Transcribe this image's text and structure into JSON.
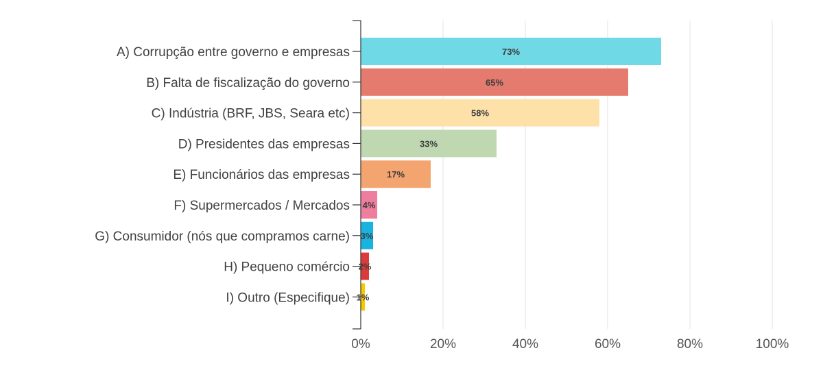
{
  "chart_data": {
    "type": "bar",
    "orientation": "horizontal",
    "title": "",
    "xlabel": "",
    "ylabel": "",
    "xlim": [
      0,
      100
    ],
    "grid": true,
    "legend": "none",
    "categories": [
      "A) Corrupção entre governo e empresas",
      "B) Falta de fiscalização do governo",
      "C) Indústria (BRF, JBS, Seara etc)",
      "D) Presidentes das empresas",
      "E) Funcionários das empresas",
      "F) Supermercados / Mercados",
      "G) Consumidor (nós que compramos carne)",
      "H) Pequeno comércio",
      "I) Outro (Especifique)"
    ],
    "values": [
      73,
      65,
      58,
      33,
      17,
      4,
      3,
      2,
      1
    ],
    "value_labels": [
      "73%",
      "65%",
      "58%",
      "33%",
      "17%",
      "4%",
      "3%",
      "2%",
      "1%"
    ],
    "colors": [
      "#6fd9e5",
      "#e57a6e",
      "#fde1a9",
      "#bfd8b1",
      "#f3a46f",
      "#ef7d9e",
      "#18b3e0",
      "#dc3b3b",
      "#f8c800"
    ],
    "x_ticks": [
      0,
      20,
      40,
      60,
      80,
      100
    ],
    "x_tick_labels": [
      "0%",
      "20%",
      "40%",
      "60%",
      "80%",
      "100%"
    ]
  }
}
